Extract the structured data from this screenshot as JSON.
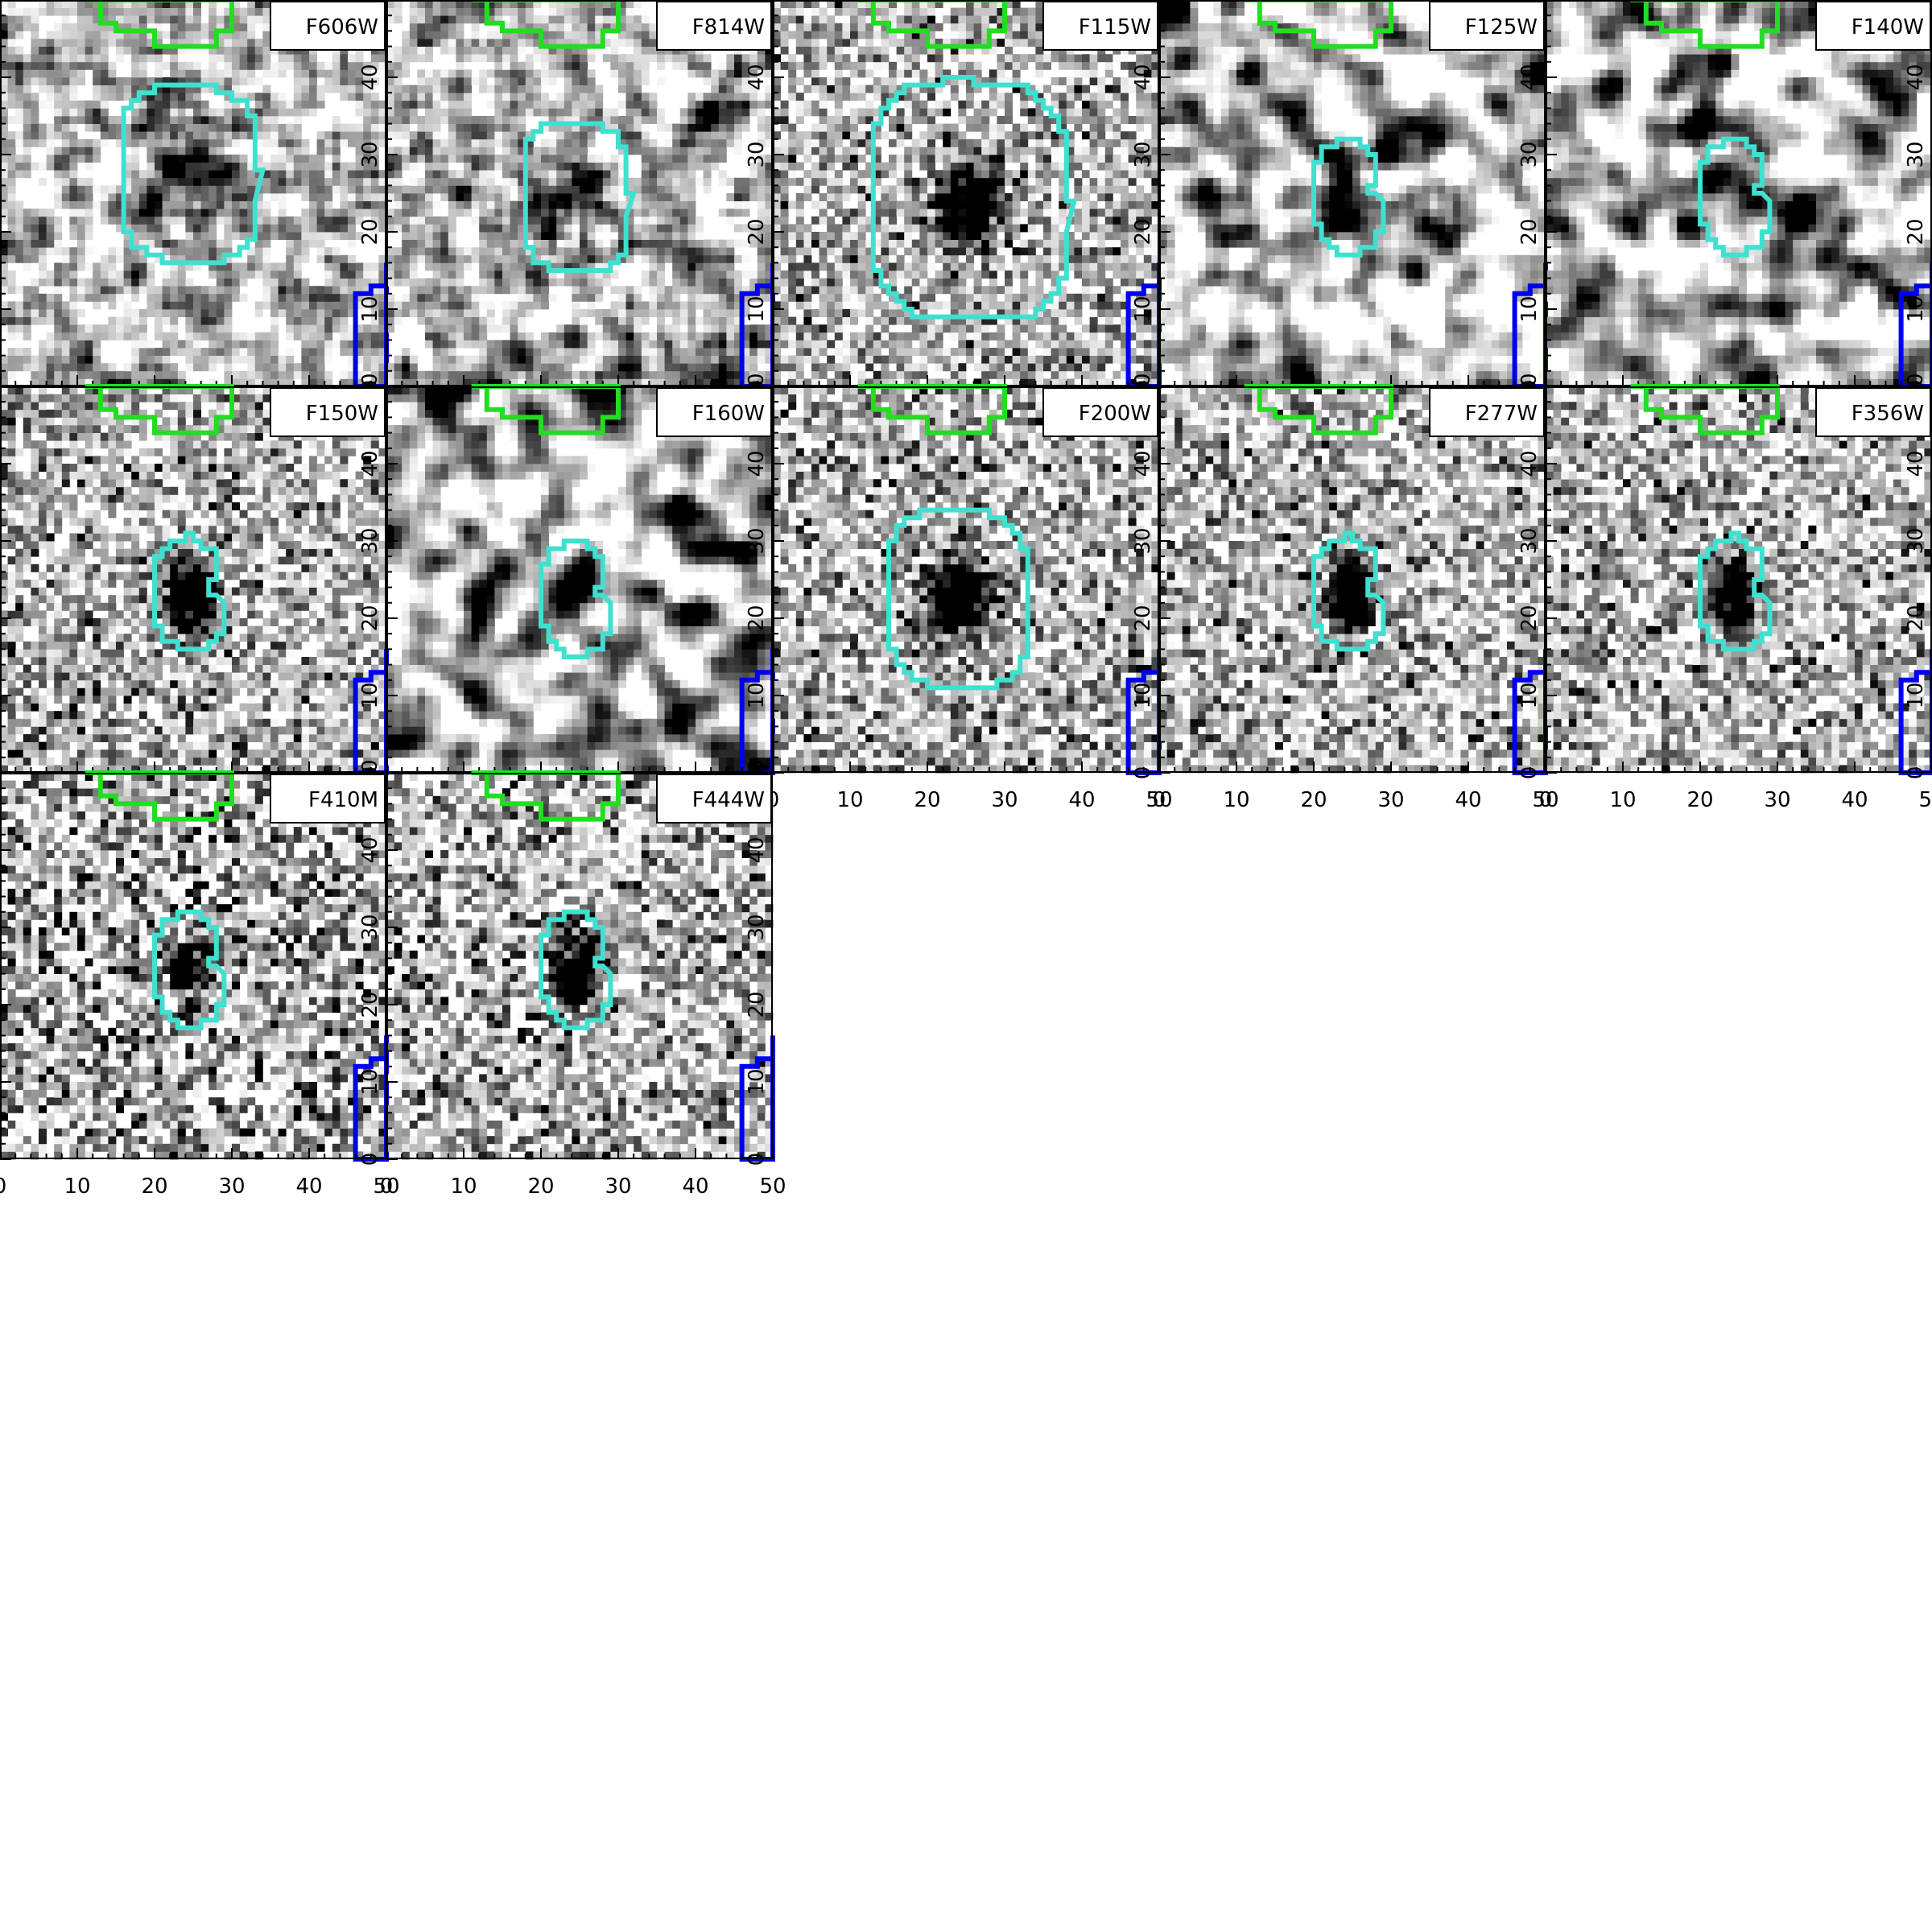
{
  "chart_data": {
    "type": "heatmap",
    "description_kind": "image cutout grid",
    "pixel_range": [
      0,
      50
    ],
    "xticks": [
      "0",
      "10",
      "20",
      "30",
      "40",
      "50"
    ],
    "yticks": [
      "0",
      "10",
      "20",
      "30",
      "40",
      "50"
    ],
    "colors": {
      "source_contour": "#40e0d0",
      "neighbor_top_contour": "#22dd22",
      "neighbor_right_contour": "#0000ee"
    },
    "panels": [
      {
        "band": "F606W",
        "noise": 1.0,
        "smooth": 1,
        "src": {
          "amp": 0.5,
          "sx": 4.0,
          "sy": 4.0
        },
        "contour": {
          "cx": 24.5,
          "cy": 27.5,
          "rx": 9.0,
          "ry": 11.5,
          "shape": "oct"
        }
      },
      {
        "band": "F814W",
        "noise": 1.0,
        "smooth": 1,
        "src": {
          "amp": 0.7,
          "sx": 3.0,
          "sy": 3.5
        },
        "contour": {
          "cx": 24.5,
          "cy": 24.5,
          "rx": 7.0,
          "ry": 9.5,
          "shape": "oct"
        }
      },
      {
        "band": "F115W",
        "noise": 0.7,
        "smooth": 0,
        "src": {
          "amp": 1.3,
          "sx": 3.0,
          "sy": 3.5
        },
        "contour": {
          "cx": 25.5,
          "cy": 24.0,
          "rx": 13.0,
          "ry": 15.5,
          "shape": "oct"
        }
      },
      {
        "band": "F125W",
        "noise": 1.0,
        "smooth": 2,
        "src": {
          "amp": 0.6,
          "sx": 2.0,
          "sy": 3.0
        },
        "contour": {
          "cx": 24.5,
          "cy": 24.5,
          "rx": 5.0,
          "ry": 7.5,
          "shape": "kidney"
        }
      },
      {
        "band": "F140W",
        "noise": 1.0,
        "smooth": 2,
        "src": {
          "amp": 0.6,
          "sx": 2.0,
          "sy": 3.0
        },
        "contour": {
          "cx": 24.5,
          "cy": 24.5,
          "rx": 5.0,
          "ry": 7.5,
          "shape": "kidney"
        }
      },
      {
        "band": "F150W",
        "noise": 0.7,
        "smooth": 0,
        "src": {
          "amp": 1.6,
          "sx": 2.2,
          "sy": 3.2
        },
        "contour": {
          "cx": 24.5,
          "cy": 23.0,
          "rx": 5.0,
          "ry": 7.5,
          "shape": "kidney"
        }
      },
      {
        "band": "F160W",
        "noise": 1.0,
        "smooth": 2,
        "src": {
          "amp": 0.9,
          "sx": 2.2,
          "sy": 3.0
        },
        "contour": {
          "cx": 24.5,
          "cy": 22.5,
          "rx": 5.0,
          "ry": 7.5,
          "shape": "kidney"
        }
      },
      {
        "band": "F200W",
        "noise": 0.7,
        "smooth": 0,
        "src": {
          "amp": 1.5,
          "sx": 3.0,
          "sy": 3.5
        },
        "contour": {
          "cx": 24.0,
          "cy": 22.5,
          "rx": 9.0,
          "ry": 11.5,
          "shape": "oct"
        }
      },
      {
        "band": "F277W",
        "noise": 0.7,
        "smooth": 0,
        "src": {
          "amp": 1.6,
          "sx": 2.0,
          "sy": 3.2
        },
        "contour": {
          "cx": 24.5,
          "cy": 23.0,
          "rx": 5.0,
          "ry": 7.5,
          "shape": "kidney"
        }
      },
      {
        "band": "F356W",
        "noise": 0.7,
        "smooth": 0,
        "src": {
          "amp": 1.6,
          "sx": 2.0,
          "sy": 3.2
        },
        "contour": {
          "cx": 24.5,
          "cy": 23.0,
          "rx": 5.0,
          "ry": 7.5,
          "shape": "kidney"
        }
      },
      {
        "band": "F410M",
        "noise": 0.9,
        "smooth": 0,
        "src": {
          "amp": 1.2,
          "sx": 2.0,
          "sy": 3.2
        },
        "contour": {
          "cx": 24.5,
          "cy": 24.5,
          "rx": 5.0,
          "ry": 7.5,
          "shape": "kidney"
        }
      },
      {
        "band": "F444W",
        "noise": 0.8,
        "smooth": 0,
        "src": {
          "amp": 1.5,
          "sx": 2.0,
          "sy": 3.2
        },
        "contour": {
          "cx": 24.5,
          "cy": 24.5,
          "rx": 5.0,
          "ry": 7.5,
          "shape": "kidney"
        }
      }
    ]
  }
}
